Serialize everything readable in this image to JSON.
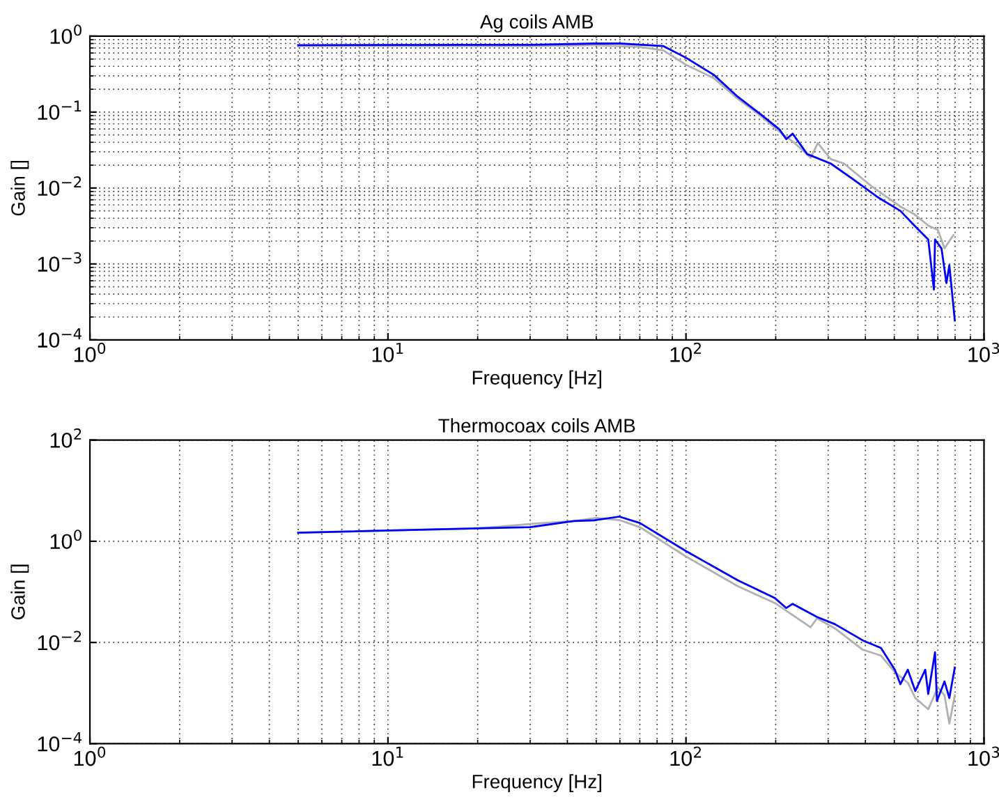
{
  "chart_data": [
    {
      "type": "line",
      "title": "Ag coils AMB",
      "xlabel": "Frequency [Hz]",
      "ylabel": "Gain []",
      "log": "xy",
      "grid": true,
      "line_style": "solid",
      "xlim": [
        1,
        1000
      ],
      "ylim": [
        0.0001,
        1
      ],
      "xticks": [
        {
          "value": 1,
          "label": "10$^{0}$"
        },
        {
          "value": 10,
          "label": "10$^{1}$"
        },
        {
          "value": 100,
          "label": "10$^{2}$"
        },
        {
          "value": 1000,
          "label": "10$^{3}$"
        }
      ],
      "yticks": [
        {
          "value": 0.0001,
          "label": "10$^{−4}$"
        },
        {
          "value": 0.001,
          "label": "10$^{−3}$"
        },
        {
          "value": 0.01,
          "label": "10$^{−2}$"
        },
        {
          "value": 0.1,
          "label": "10$^{−1}$"
        },
        {
          "value": 1,
          "label": "10$^{0}$"
        }
      ],
      "series": [
        {
          "color": "#b0b0b0",
          "x": [
            5,
            20,
            30,
            50,
            70,
            84,
            100,
            124,
            149,
            179,
            206,
            230,
            262,
            277,
            306,
            339,
            420,
            524,
            584,
            650,
            700,
            737,
            765,
            790
          ],
          "values": [
            0.74,
            0.74,
            0.74,
            0.76,
            0.72,
            0.65,
            0.42,
            0.28,
            0.15,
            0.088,
            0.055,
            0.04,
            0.025,
            0.039,
            0.024,
            0.021,
            0.0105,
            0.0057,
            0.0045,
            0.0032,
            0.0028,
            0.0016,
            0.002,
            0.0024
          ]
        },
        {
          "color": "#0000ff",
          "x": [
            5,
            20,
            30,
            49,
            60,
            84,
            100,
            124,
            149,
            179,
            206,
            217,
            228,
            255,
            306,
            364,
            437,
            524,
            584,
            650,
            679,
            685,
            720,
            748,
            765,
            798
          ],
          "values": [
            0.76,
            0.77,
            0.77,
            0.8,
            0.8,
            0.74,
            0.52,
            0.31,
            0.16,
            0.092,
            0.059,
            0.044,
            0.052,
            0.028,
            0.021,
            0.013,
            0.0077,
            0.005,
            0.0032,
            0.0021,
            0.00046,
            0.0021,
            0.0016,
            0.00056,
            0.00096,
            0.00018
          ]
        }
      ]
    },
    {
      "type": "line",
      "title": "Thermocoax coils AMB",
      "xlabel": "Frequency [Hz]",
      "ylabel": "Gain []",
      "log": "xy",
      "grid": true,
      "line_style": "solid",
      "xlim": [
        1,
        1000
      ],
      "ylim": [
        0.0001,
        100
      ],
      "xticks": [
        {
          "value": 1,
          "label": "10$^{0}$"
        },
        {
          "value": 10,
          "label": "10$^{1}$"
        },
        {
          "value": 100,
          "label": "10$^{2}$"
        },
        {
          "value": 1000,
          "label": "10$^{3}$"
        }
      ],
      "yticks": [
        {
          "value": 0.0001,
          "label": "10$^{−4}$"
        },
        {
          "value": 0.01,
          "label": "10$^{−2}$"
        },
        {
          "value": 1,
          "label": "10$^{0}$"
        },
        {
          "value": 100,
          "label": "10$^{2}$"
        }
      ],
      "series": [
        {
          "color": "#b0b0b0",
          "x": [
            5,
            20,
            30,
            42,
            50,
            60,
            70,
            100,
            149,
            199,
            262,
            275,
            316,
            392,
            451,
            502,
            555,
            588,
            650,
            700,
            737,
            765,
            798
          ],
          "values": [
            1.48,
            1.8,
            2.2,
            2.5,
            2.9,
            2.6,
            1.9,
            0.5,
            0.13,
            0.06,
            0.02,
            0.03,
            0.019,
            0.0072,
            0.0055,
            0.0026,
            0.0016,
            0.0008,
            0.00048,
            0.0013,
            0.0009,
            0.00025,
            0.0009
          ]
        },
        {
          "color": "#0000ff",
          "x": [
            5,
            20,
            30,
            42,
            49.5,
            59.7,
            70,
            100,
            149,
            199,
            217,
            228,
            275,
            316,
            392,
            451,
            502,
            524,
            555,
            588,
            635,
            650,
            685,
            695,
            737,
            765,
            798
          ],
          "values": [
            1.48,
            1.8,
            1.9,
            2.5,
            2.6,
            3.07,
            2.3,
            0.64,
            0.17,
            0.075,
            0.048,
            0.058,
            0.032,
            0.023,
            0.011,
            0.0078,
            0.0029,
            0.0015,
            0.0029,
            0.0011,
            0.0029,
            0.00096,
            0.0064,
            0.0007,
            0.0017,
            0.0008,
            0.0032
          ]
        }
      ]
    }
  ]
}
